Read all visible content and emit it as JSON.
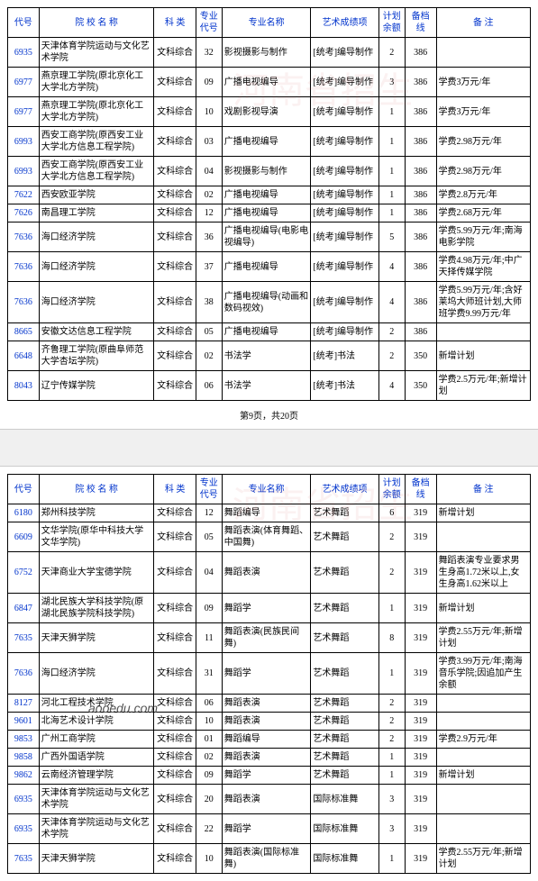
{
  "headers": {
    "code": "代号",
    "school": "院 校 名 称",
    "category": "科 类",
    "majorcode": "专业\n代号",
    "majorname": "专业名称",
    "artitem": "艺术成绩项",
    "plan": "计划\n余额",
    "score": "备档线",
    "remark": "备 注"
  },
  "pagination": "第9页，共20页",
  "table1_rows": [
    {
      "code": "6935",
      "school": "天津体育学院运动与文化艺术学院",
      "category": "文科综合",
      "majorcode": "32",
      "majorname": "影视摄影与制作",
      "artitem": "[统考]编导制作",
      "plan": "2",
      "score": "386",
      "remark": ""
    },
    {
      "code": "6977",
      "school": "燕京理工学院(原北京化工大学北方学院)",
      "category": "文科综合",
      "majorcode": "09",
      "majorname": "广播电视编导",
      "artitem": "[统考]编导制作",
      "plan": "3",
      "score": "386",
      "remark": "学费3万元/年"
    },
    {
      "code": "6977",
      "school": "燕京理工学院(原北京化工大学北方学院)",
      "category": "文科综合",
      "majorcode": "10",
      "majorname": "戏剧影视导演",
      "artitem": "[统考]编导制作",
      "plan": "1",
      "score": "386",
      "remark": "学费3万元/年"
    },
    {
      "code": "6993",
      "school": "西安工商学院(原西安工业大学北方信息工程学院)",
      "category": "文科综合",
      "majorcode": "03",
      "majorname": "广播电视编导",
      "artitem": "[统考]编导制作",
      "plan": "1",
      "score": "386",
      "remark": "学费2.98万元/年"
    },
    {
      "code": "6993",
      "school": "西安工商学院(原西安工业大学北方信息工程学院)",
      "category": "文科综合",
      "majorcode": "04",
      "majorname": "影视摄影与制作",
      "artitem": "[统考]编导制作",
      "plan": "1",
      "score": "386",
      "remark": "学费2.98万元/年"
    },
    {
      "code": "7622",
      "school": "西安欧亚学院",
      "category": "文科综合",
      "majorcode": "02",
      "majorname": "广播电视编导",
      "artitem": "[统考]编导制作",
      "plan": "1",
      "score": "386",
      "remark": "学费2.8万元/年"
    },
    {
      "code": "7626",
      "school": "南昌理工学院",
      "category": "文科综合",
      "majorcode": "12",
      "majorname": "广播电视编导",
      "artitem": "[统考]编导制作",
      "plan": "1",
      "score": "386",
      "remark": "学费2.68万元/年"
    },
    {
      "code": "7636",
      "school": "海口经济学院",
      "category": "文科综合",
      "majorcode": "36",
      "majorname": "广播电视编导(电影电视编导)",
      "artitem": "[统考]编导制作",
      "plan": "5",
      "score": "386",
      "remark": "学费5.99万元/年;南海电影学院"
    },
    {
      "code": "7636",
      "school": "海口经济学院",
      "category": "文科综合",
      "majorcode": "37",
      "majorname": "广播电视编导",
      "artitem": "[统考]编导制作",
      "plan": "4",
      "score": "386",
      "remark": "学费4.98万元/年;中广天择传媒学院"
    },
    {
      "code": "7636",
      "school": "海口经济学院",
      "category": "文科综合",
      "majorcode": "38",
      "majorname": "广播电视编导(动画和数码视效)",
      "artitem": "[统考]编导制作",
      "plan": "4",
      "score": "386",
      "remark": "学费5.99万元/年;含好莱坞大师班计划,大师班学费9.99万元/年"
    },
    {
      "code": "8665",
      "school": "安徽文达信息工程学院",
      "category": "文科综合",
      "majorcode": "05",
      "majorname": "广播电视编导",
      "artitem": "[统考]编导制作",
      "plan": "2",
      "score": "386",
      "remark": ""
    },
    {
      "code": "6648",
      "school": "齐鲁理工学院(原曲阜师范大学杏坛学院)",
      "category": "文科综合",
      "majorcode": "02",
      "majorname": "书法学",
      "artitem": "[统考]书法",
      "plan": "2",
      "score": "350",
      "remark": "新增计划"
    },
    {
      "code": "8043",
      "school": "辽宁传媒学院",
      "category": "文科综合",
      "majorcode": "06",
      "majorname": "书法学",
      "artitem": "[统考]书法",
      "plan": "4",
      "score": "350",
      "remark": "学费2.5万元/年;新增计划"
    }
  ],
  "table2_rows": [
    {
      "code": "6180",
      "school": "郑州科技学院",
      "category": "文科综合",
      "majorcode": "12",
      "majorname": "舞蹈编导",
      "artitem": "艺术舞蹈",
      "plan": "6",
      "score": "319",
      "remark": "新增计划"
    },
    {
      "code": "6609",
      "school": "文华学院(原华中科技大学文华学院)",
      "category": "文科综合",
      "majorcode": "05",
      "majorname": "舞蹈表演(体育舞蹈、中国舞)",
      "artitem": "艺术舞蹈",
      "plan": "2",
      "score": "319",
      "remark": ""
    },
    {
      "code": "6752",
      "school": "天津商业大学宝德学院",
      "category": "文科综合",
      "majorcode": "04",
      "majorname": "舞蹈表演",
      "artitem": "艺术舞蹈",
      "plan": "2",
      "score": "319",
      "remark": "舞蹈表演专业要求男生身高1.72米以上,女生身高1.62米以上"
    },
    {
      "code": "6847",
      "school": "湖北民族大学科技学院(原湖北民族学院科技学院)",
      "category": "文科综合",
      "majorcode": "09",
      "majorname": "舞蹈学",
      "artitem": "艺术舞蹈",
      "plan": "1",
      "score": "319",
      "remark": "新增计划"
    },
    {
      "code": "7635",
      "school": "天津天狮学院",
      "category": "文科综合",
      "majorcode": "11",
      "majorname": "舞蹈表演(民族民间舞)",
      "artitem": "艺术舞蹈",
      "plan": "8",
      "score": "319",
      "remark": "学费2.55万元/年;新增计划"
    },
    {
      "code": "7636",
      "school": "海口经济学院",
      "category": "文科综合",
      "majorcode": "31",
      "majorname": "舞蹈学",
      "artitem": "艺术舞蹈",
      "plan": "1",
      "score": "319",
      "remark": "学费3.99万元/年;南海音乐学院;因追加产生余额"
    },
    {
      "code": "8127",
      "school": "河北工程技术学院",
      "category": "文科综合",
      "majorcode": "06",
      "majorname": "舞蹈表演",
      "artitem": "艺术舞蹈",
      "plan": "2",
      "score": "319",
      "remark": ""
    },
    {
      "code": "9601",
      "school": "北海艺术设计学院",
      "category": "文科综合",
      "majorcode": "10",
      "majorname": "舞蹈表演",
      "artitem": "艺术舞蹈",
      "plan": "2",
      "score": "319",
      "remark": ""
    },
    {
      "code": "9853",
      "school": "广州工商学院",
      "category": "文科综合",
      "majorcode": "01",
      "majorname": "舞蹈编导",
      "artitem": "艺术舞蹈",
      "plan": "2",
      "score": "319",
      "remark": "学费2.9万元/年"
    },
    {
      "code": "9858",
      "school": "广西外国语学院",
      "category": "文科综合",
      "majorcode": "02",
      "majorname": "舞蹈表演",
      "artitem": "艺术舞蹈",
      "plan": "1",
      "score": "319",
      "remark": ""
    },
    {
      "code": "9862",
      "school": "云南经济管理学院",
      "category": "文科综合",
      "majorcode": "09",
      "majorname": "舞蹈学",
      "artitem": "艺术舞蹈",
      "plan": "1",
      "score": "319",
      "remark": "新增计划"
    },
    {
      "code": "6935",
      "school": "天津体育学院运动与文化艺术学院",
      "category": "文科综合",
      "majorcode": "20",
      "majorname": "舞蹈表演",
      "artitem": "国际标准舞",
      "plan": "3",
      "score": "319",
      "remark": ""
    },
    {
      "code": "6935",
      "school": "天津体育学院运动与文化艺术学院",
      "category": "文科综合",
      "majorcode": "22",
      "majorname": "舞蹈学",
      "artitem": "国际标准舞",
      "plan": "3",
      "score": "319",
      "remark": ""
    },
    {
      "code": "7635",
      "school": "天津天狮学院",
      "category": "文科综合",
      "majorcode": "10",
      "majorname": "舞蹈表演(国际标准舞)",
      "artitem": "国际标准舞",
      "plan": "1",
      "score": "319",
      "remark": "学费2.55万元/年;新增计划"
    }
  ],
  "overlay_url": "aooedu.com",
  "watermark": "河南省招生"
}
